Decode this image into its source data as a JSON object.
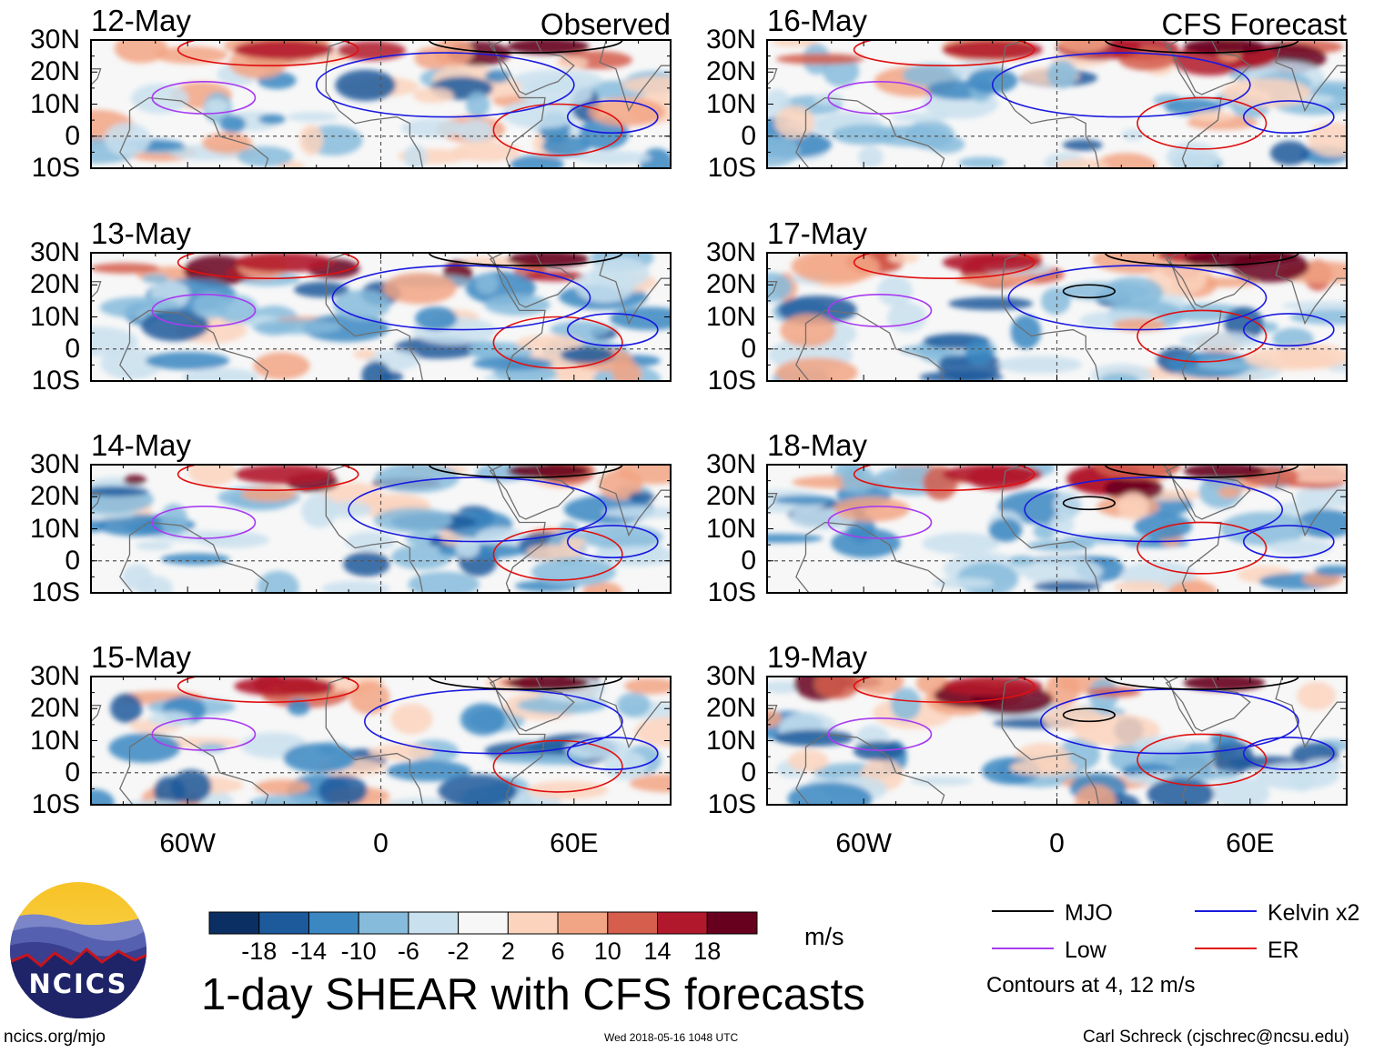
{
  "chart_data": {
    "type": "heatmap",
    "title": "1-day SHEAR with CFS forecasts",
    "variable": "SHEAR",
    "units": "m/s",
    "columns": [
      {
        "label": "Observed",
        "panels": [
          "12-May",
          "13-May",
          "14-May",
          "15-May"
        ]
      },
      {
        "label": "CFS Forecast",
        "panels": [
          "16-May",
          "17-May",
          "18-May",
          "19-May"
        ]
      }
    ],
    "lat_ticks": [
      "30N",
      "20N",
      "10N",
      "0",
      "10S"
    ],
    "lat_values": [
      30,
      20,
      10,
      0,
      -10
    ],
    "lat_range": [
      -10,
      30
    ],
    "lon_ticks": [
      "60W",
      "0",
      "60E"
    ],
    "lon_values": [
      -60,
      0,
      60
    ],
    "lon_range": [
      -90,
      90
    ],
    "colorbar": {
      "ticks": [
        "-18",
        "-14",
        "-10",
        "-6",
        "-2",
        "2",
        "6",
        "10",
        "14",
        "18"
      ],
      "colors": [
        "#0b2f63",
        "#1c5a9c",
        "#3b87c2",
        "#86bbdc",
        "#c9e1ef",
        "#f7f7f7",
        "#fcd3bd",
        "#f2a584",
        "#d55e4d",
        "#b2182b",
        "#67001f"
      ]
    },
    "contour_legend": [
      {
        "label": "MJO",
        "color": "#000000"
      },
      {
        "label": "Kelvin x2",
        "color": "#1a1adf"
      },
      {
        "label": "Low",
        "color": "#a83cf0"
      },
      {
        "label": "ER",
        "color": "#e01010"
      }
    ],
    "contour_note": "Contours at 4, 12 m/s"
  },
  "footer": {
    "left": "ncics.org/mjo",
    "center": "Wed 2018-05-16 1048 UTC",
    "right": "Carl Schreck (cjschrec@ncsu.edu)"
  },
  "logo": {
    "text": "NCICS"
  }
}
